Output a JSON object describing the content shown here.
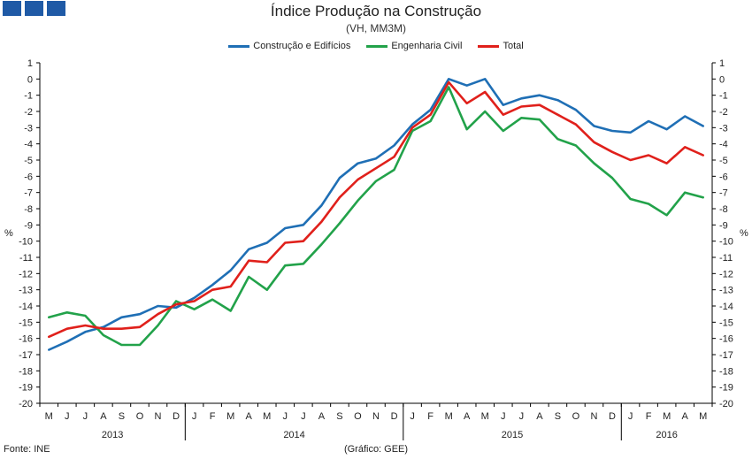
{
  "header": {
    "logo_colors": [
      "#1f5aa6",
      "#1f5aa6",
      "#1f5aa6"
    ]
  },
  "chart_data": {
    "type": "line",
    "title": "Índice Produção na Construção",
    "subtitle": "(VH, MM3M)",
    "ylabel": "%",
    "ylim": [
      -20,
      1
    ],
    "yticks": [
      1,
      0,
      -1,
      -2,
      -3,
      -4,
      -5,
      -6,
      -7,
      -8,
      -9,
      -10,
      -11,
      -12,
      -13,
      -14,
      -15,
      -16,
      -17,
      -18,
      -19,
      -20
    ],
    "grid": false,
    "legend_position": "top",
    "categories": [
      "M",
      "J",
      "J",
      "A",
      "S",
      "O",
      "N",
      "D",
      "J",
      "F",
      "M",
      "A",
      "M",
      "J",
      "J",
      "A",
      "S",
      "O",
      "N",
      "D",
      "J",
      "F",
      "M",
      "A",
      "M",
      "J",
      "J",
      "A",
      "S",
      "O",
      "N",
      "D",
      "J",
      "F",
      "M",
      "A",
      "M"
    ],
    "years": [
      {
        "label": "2013",
        "start": 0,
        "end": 7
      },
      {
        "label": "2014",
        "start": 8,
        "end": 19
      },
      {
        "label": "2015",
        "start": 20,
        "end": 31
      },
      {
        "label": "2016",
        "start": 32,
        "end": 36
      }
    ],
    "series": [
      {
        "name": "Construção e Edifícios",
        "color": "#1f6fb5",
        "values": [
          -16.7,
          -16.2,
          -15.6,
          -15.3,
          -14.7,
          -14.5,
          -14.0,
          -14.1,
          -13.5,
          -12.7,
          -11.8,
          -10.5,
          -10.1,
          -9.2,
          -9.0,
          -7.8,
          -6.1,
          -5.2,
          -4.9,
          -4.1,
          -2.8,
          -1.9,
          0.0,
          -0.4,
          0.0,
          -1.6,
          -1.2,
          -1.0,
          -1.3,
          -1.9,
          -2.9,
          -3.2,
          -3.3,
          -2.6,
          -3.1,
          -2.3,
          -2.9
        ]
      },
      {
        "name": "Engenharia Civil",
        "color": "#22a24a",
        "values": [
          -14.7,
          -14.4,
          -14.6,
          -15.8,
          -16.4,
          -16.4,
          -15.2,
          -13.7,
          -14.2,
          -13.6,
          -14.3,
          -12.2,
          -13.0,
          -11.5,
          -11.4,
          -10.2,
          -8.9,
          -7.5,
          -6.3,
          -5.6,
          -3.2,
          -2.6,
          -0.5,
          -3.1,
          -2.0,
          -3.2,
          -2.4,
          -2.5,
          -3.7,
          -4.1,
          -5.2,
          -6.1,
          -7.4,
          -7.7,
          -8.4,
          -7.0,
          -7.3
        ]
      },
      {
        "name": "Total",
        "color": "#e0201b",
        "values": [
          -15.9,
          -15.4,
          -15.2,
          -15.4,
          -15.4,
          -15.3,
          -14.5,
          -13.9,
          -13.7,
          -13.0,
          -12.8,
          -11.2,
          -11.3,
          -10.1,
          -10.0,
          -8.8,
          -7.3,
          -6.2,
          -5.5,
          -4.8,
          -3.0,
          -2.2,
          -0.2,
          -1.5,
          -0.8,
          -2.2,
          -1.7,
          -1.6,
          -2.2,
          -2.8,
          -3.9,
          -4.5,
          -5.0,
          -4.7,
          -5.2,
          -4.2,
          -4.7
        ]
      }
    ]
  },
  "footer": {
    "source": "Fonte: INE",
    "credit": "(Gráfico: GEE)"
  }
}
